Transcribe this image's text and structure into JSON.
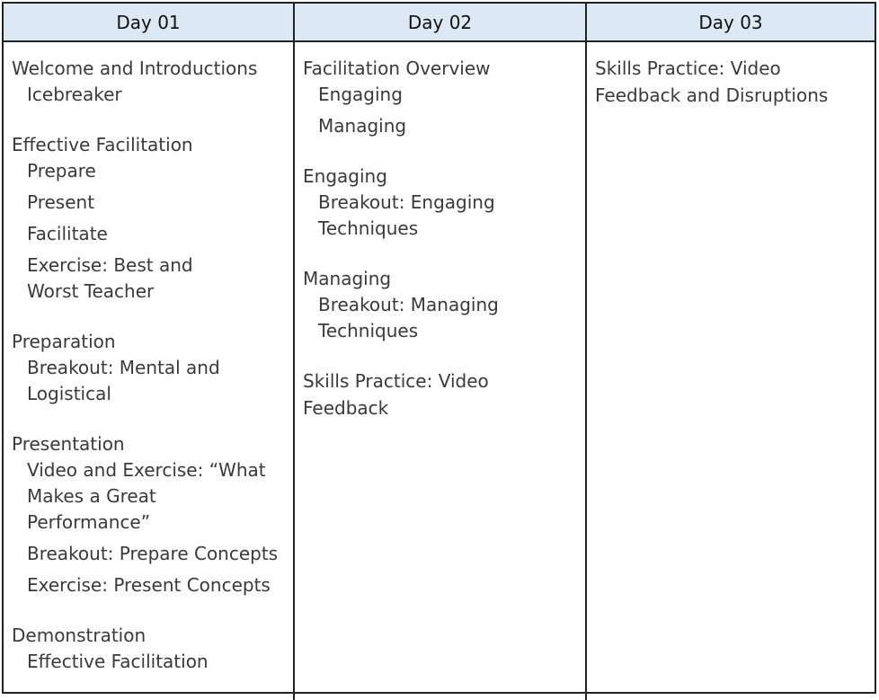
{
  "days": [
    {
      "label": "Day 01",
      "groups": [
        {
          "topic": "Welcome and Introductions",
          "items": [
            "Icebreaker"
          ]
        },
        {
          "topic": "Effective Facilitation",
          "items": [
            "Prepare",
            "Present",
            "Facilitate",
            "Exercise: Best and Worst Teacher"
          ]
        },
        {
          "topic": "Preparation",
          "items": [
            "Breakout: Mental and Logistical"
          ]
        },
        {
          "topic": "Presentation",
          "items": [
            "Video and Exercise: “What Makes a Great Performance”",
            "Breakout: Prepare Concepts",
            "Exercise: Present Concepts"
          ]
        },
        {
          "topic": "Demonstration",
          "items": [
            "Effective Facilitation"
          ]
        }
      ]
    },
    {
      "label": "Day 02",
      "groups": [
        {
          "topic": "Facilitation Overview",
          "items": [
            "Engaging",
            "Managing"
          ]
        },
        {
          "topic": "Engaging",
          "items": [
            "Breakout: Engaging Techniques"
          ]
        },
        {
          "topic": "Managing",
          "items": [
            "Breakout: Managing Techniques"
          ]
        },
        {
          "topic": "Skills Practice: Video Feedback",
          "items": []
        }
      ]
    },
    {
      "label": "Day 03",
      "groups": [
        {
          "topic": "Skills Practice: Video Feedback and Disruptions",
          "items": []
        }
      ]
    }
  ]
}
